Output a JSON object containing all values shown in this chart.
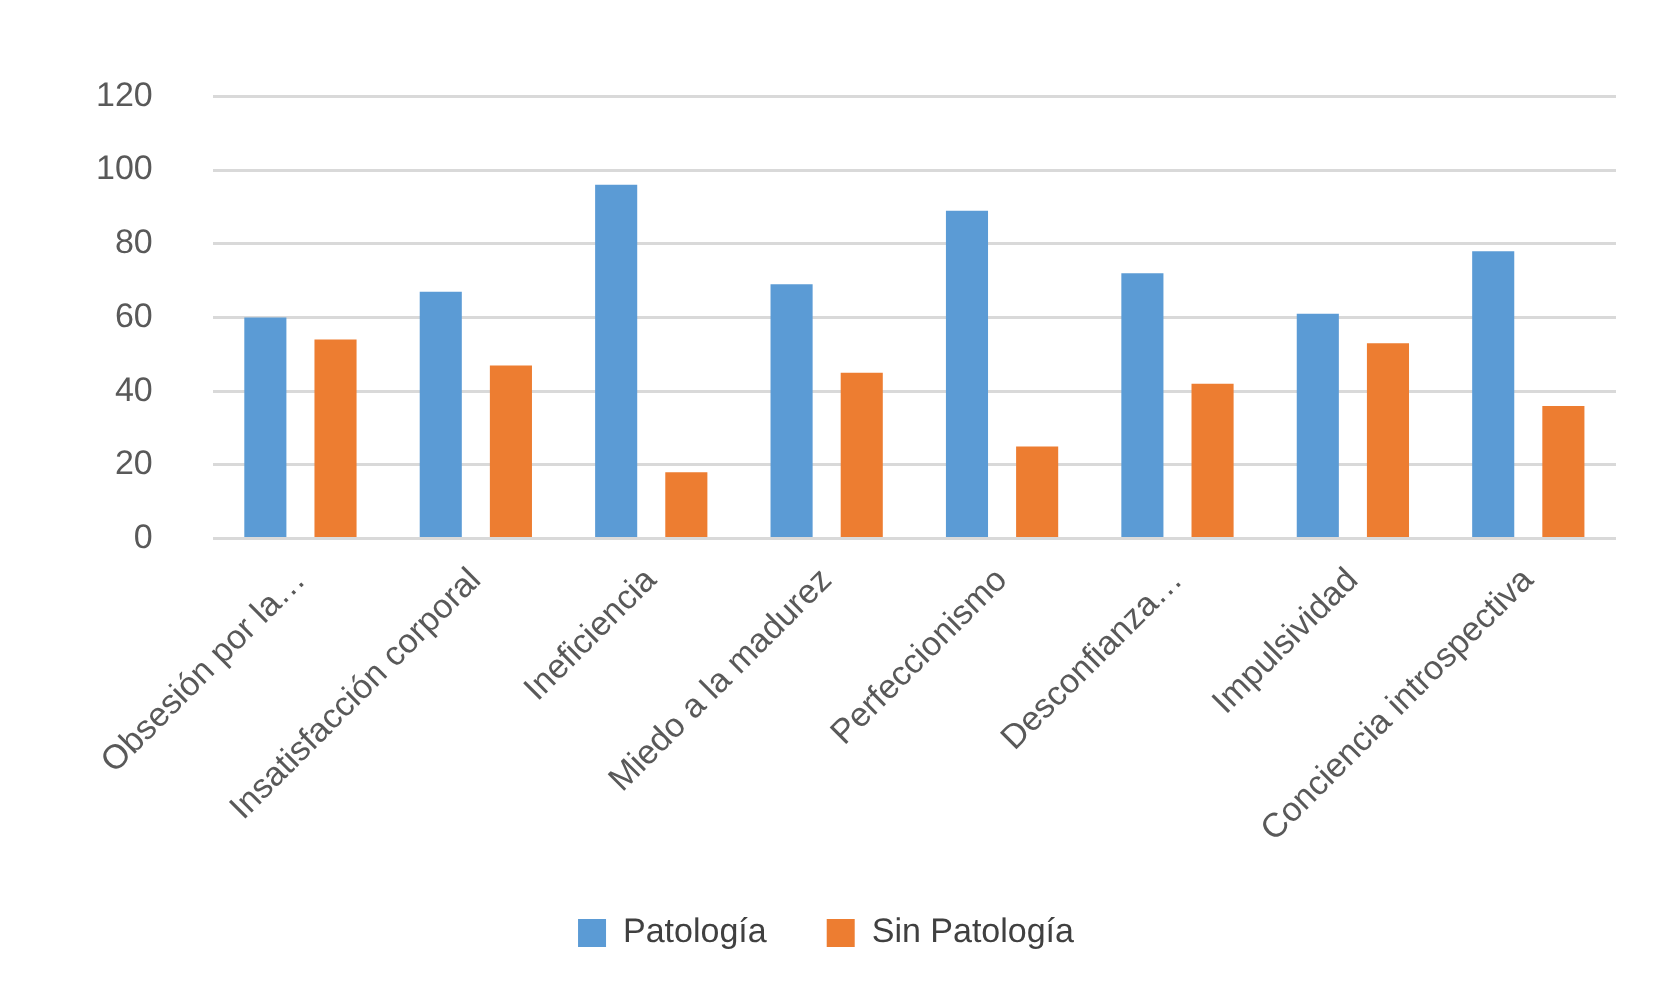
{
  "chart_data": {
    "type": "bar",
    "categories": [
      "Obsesión por la…",
      "Insatisfacción corporal",
      "Ineficiencia",
      "Miedo a la madurez",
      "Perfeccionismo",
      "Desconfianza…",
      "Impulsividad",
      "Conciencia introspectiva"
    ],
    "series": [
      {
        "name": "Patología",
        "color": "#5b9bd5",
        "values": [
          60,
          67,
          96,
          69,
          89,
          72,
          61,
          78
        ]
      },
      {
        "name": "Sin Patología",
        "color": "#ed7d31",
        "values": [
          54,
          47,
          18,
          45,
          25,
          42,
          53,
          36
        ]
      }
    ],
    "ylim": [
      0,
      120
    ],
    "yticks": [
      0,
      20,
      40,
      60,
      80,
      100,
      120
    ],
    "grid": "y",
    "legend": "bottom"
  }
}
